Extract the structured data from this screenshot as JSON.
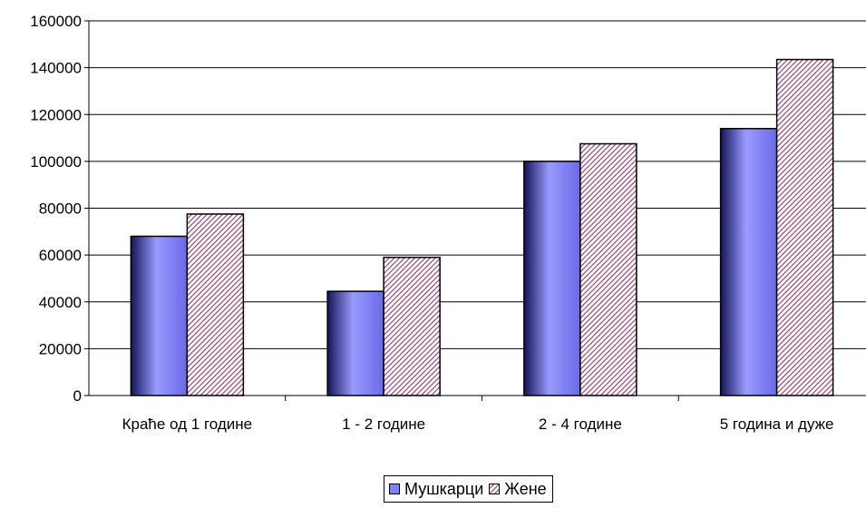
{
  "chart_data": {
    "type": "bar",
    "categories": [
      "Краће од 1 године",
      "1 - 2 године",
      "2 - 4 године",
      "5 година и дуже"
    ],
    "series": [
      {
        "name": "Мушкарци",
        "values": [
          68000,
          44500,
          100000,
          114000
        ],
        "color": "#8080ff"
      },
      {
        "name": "Жене",
        "values": [
          77500,
          59000,
          107500,
          143500
        ],
        "color": "#993366"
      }
    ],
    "y_ticks": [
      "0",
      "20000",
      "40000",
      "60000",
      "80000",
      "100000",
      "120000",
      "140000",
      "160000"
    ],
    "ylim": [
      0,
      160000
    ],
    "grid": true,
    "legend_position": "bottom"
  }
}
